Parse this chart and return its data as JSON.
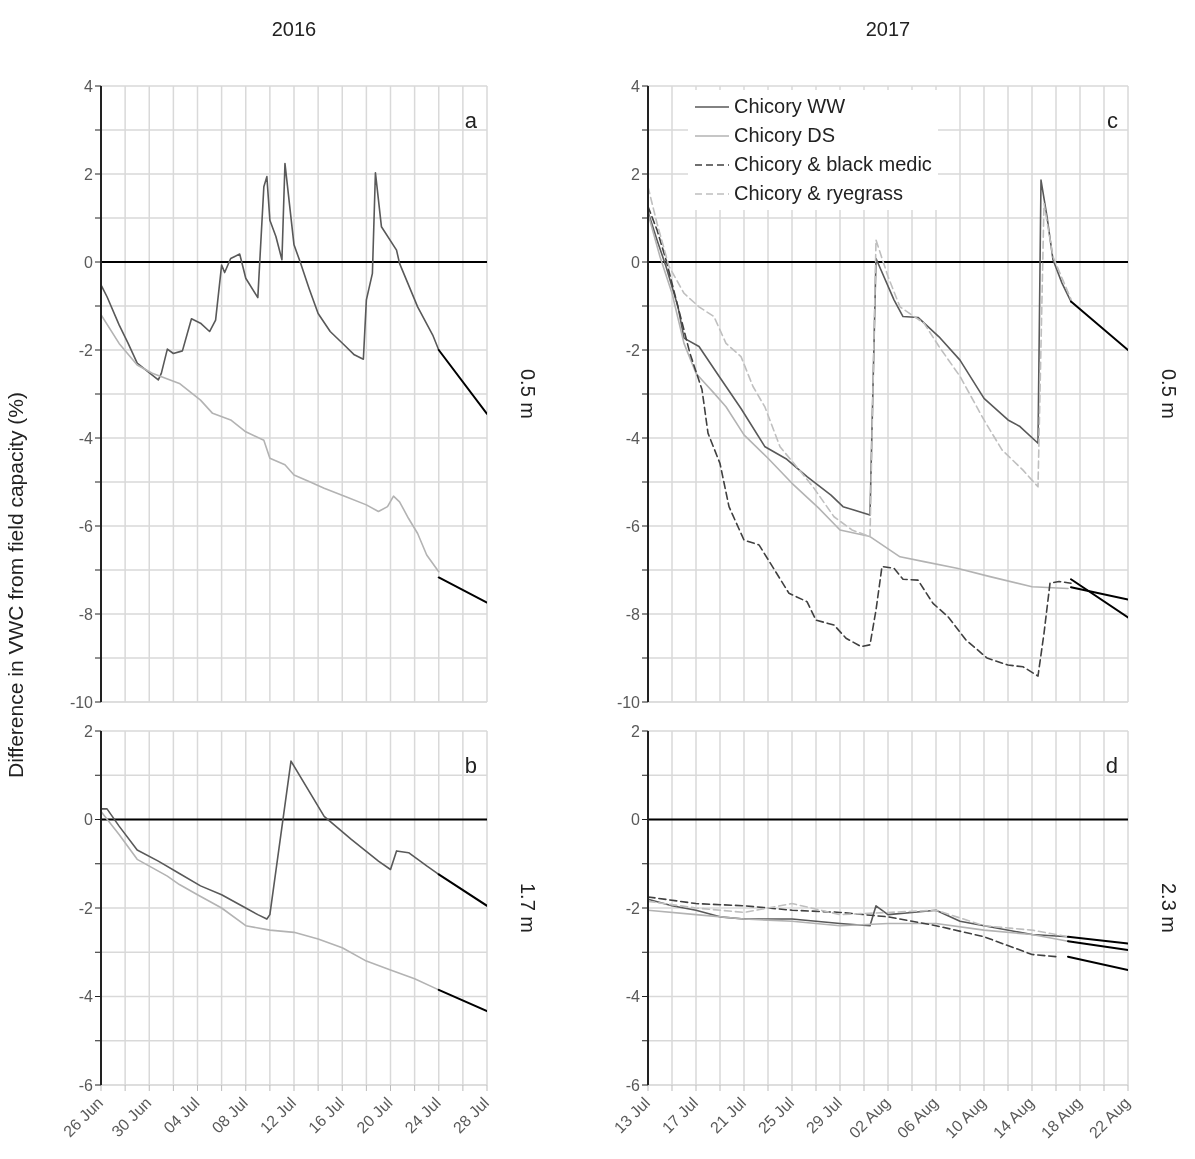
{
  "chart_data": [
    {
      "type": "line",
      "title": "2016",
      "ylabel": "Difference in VWC from field capacity (%)",
      "annotations": [
        "a",
        "0.5 m"
      ],
      "tick_labels": "y",
      "grid": true,
      "xlim": [
        "2016-06-26",
        "2016-07-28"
      ],
      "xticks": [
        {
          "value": "2016-06-26",
          "label": null
        },
        {
          "value": "2016-06-28",
          "label": null
        },
        {
          "value": "2016-06-30",
          "label": null
        },
        {
          "value": "2016-07-02",
          "label": null
        },
        {
          "value": "2016-07-04",
          "label": null
        },
        {
          "value": "2016-07-06",
          "label": null
        },
        {
          "value": "2016-07-08",
          "label": null
        },
        {
          "value": "2016-07-10",
          "label": null
        },
        {
          "value": "2016-07-12",
          "label": null
        },
        {
          "value": "2016-07-14",
          "label": null
        },
        {
          "value": "2016-07-16",
          "label": null
        },
        {
          "value": "2016-07-18",
          "label": null
        },
        {
          "value": "2016-07-20",
          "label": null
        },
        {
          "value": "2016-07-22",
          "label": null
        },
        {
          "value": "2016-07-24",
          "label": null
        },
        {
          "value": "2016-07-26",
          "label": null
        },
        {
          "value": "2016-07-28",
          "label": null
        }
      ],
      "ylim": [
        -10,
        4
      ],
      "yticks": [
        4,
        {
          "value": 3,
          "label": null
        },
        2,
        {
          "value": 1,
          "label": null
        },
        0,
        {
          "value": -1,
          "label": null
        },
        -2,
        {
          "value": -3,
          "label": null
        },
        -4,
        {
          "value": -5,
          "label": null
        },
        -6,
        {
          "value": -7,
          "label": null
        },
        -8,
        {
          "value": -9,
          "label": null
        },
        -10
      ],
      "ref_lines": [
        {
          "axis": "y",
          "value": 0,
          "color": "#000000"
        }
      ],
      "series": [
        {
          "color": "#595959",
          "line_style": "solid",
          "x": [
            "2016-06-26T00:00",
            "2016-06-26T12:00",
            "2016-06-27T12:00",
            "2016-06-28T06:00",
            "2016-06-29T00:00",
            "2016-06-30T06:00",
            "2016-06-30T18:00",
            "2016-07-01T00:00",
            "2016-07-01T12:00",
            "2016-07-02T00:00",
            "2016-07-02T18:00",
            "2016-07-03T12:00",
            "2016-07-04T06:00",
            "2016-07-05T00:00",
            "2016-07-05T12:00",
            "2016-07-06T00:00",
            "2016-07-06T06:00",
            "2016-07-06T18:00",
            "2016-07-07T12:00",
            "2016-07-08T00:00",
            "2016-07-09T00:00",
            "2016-07-09T12:00",
            "2016-07-09T18:00",
            "2016-07-10T00:00",
            "2016-07-10T12:00",
            "2016-07-11T00:00",
            "2016-07-11T06:00",
            "2016-07-12T00:00",
            "2016-07-12T12:00",
            "2016-07-13T06:00",
            "2016-07-14T00:00",
            "2016-07-15T00:00",
            "2016-07-16T06:00",
            "2016-07-17T00:00",
            "2016-07-17T18:00",
            "2016-07-18T00:00",
            "2016-07-18T12:00",
            "2016-07-18T18:00",
            "2016-07-19T06:00",
            "2016-07-20T12:00",
            "2016-07-20T18:00",
            "2016-07-22T06:00",
            "2016-07-23T12:00",
            "2016-07-24T00:00"
          ],
          "values": [
            -0.52,
            -0.79,
            -1.43,
            -1.85,
            -2.3,
            -2.57,
            -2.68,
            -2.53,
            -1.98,
            -2.08,
            -2.02,
            -1.29,
            -1.39,
            -1.58,
            -1.32,
            -0.07,
            -0.24,
            0.08,
            0.18,
            -0.37,
            -0.81,
            1.71,
            1.94,
            0.95,
            0.58,
            0.05,
            2.24,
            0.39,
            0.01,
            -0.6,
            -1.17,
            -1.58,
            -1.91,
            -2.11,
            -2.21,
            -0.86,
            -0.26,
            2.03,
            0.8,
            0.27,
            -0.03,
            -1.02,
            -1.66,
            -2.0
          ]
        },
        {
          "color": "#b3b3b3",
          "line_style": "solid",
          "x": [
            "2016-06-26T00:00",
            "2016-06-27T12:00",
            "2016-06-29T00:00",
            "2016-06-30T06:00",
            "2016-07-02T12:00",
            "2016-07-04T06:00",
            "2016-07-05T06:00",
            "2016-07-06T18:00",
            "2016-07-08T00:00",
            "2016-07-09T12:00",
            "2016-07-10T00:00",
            "2016-07-11T06:00",
            "2016-07-12T00:00",
            "2016-07-13T06:00",
            "2016-07-14T12:00",
            "2016-07-16T06:00",
            "2016-07-18T00:00",
            "2016-07-19T00:00",
            "2016-07-19T18:00",
            "2016-07-20T06:00",
            "2016-07-20T18:00",
            "2016-07-21T12:00",
            "2016-07-22T06:00",
            "2016-07-23T00:00",
            "2016-07-24T00:00"
          ],
          "values": [
            -1.2,
            -1.85,
            -2.34,
            -2.53,
            -2.76,
            -3.14,
            -3.44,
            -3.59,
            -3.86,
            -4.05,
            -4.46,
            -4.61,
            -4.84,
            -4.99,
            -5.14,
            -5.33,
            -5.52,
            -5.67,
            -5.56,
            -5.32,
            -5.45,
            -5.83,
            -6.17,
            -6.66,
            -7.04
          ]
        },
        {
          "color": "#000000",
          "line_style": "solid",
          "x": [
            "2016-07-24T00:00",
            "2016-07-28T00:00"
          ],
          "values": [
            -2.0,
            -3.45
          ]
        },
        {
          "color": "#000000",
          "line_style": "solid",
          "x": [
            "2016-07-24T00:00",
            "2016-07-28T00:00"
          ],
          "values": [
            -7.17,
            -7.74
          ]
        }
      ]
    },
    {
      "type": "line",
      "annotations": [
        "b",
        "1.7 m"
      ],
      "grid": true,
      "xlim": [
        "2016-06-26",
        "2016-07-28"
      ],
      "xticks": [
        {
          "value": "2016-06-26",
          "label": "26 Jun"
        },
        {
          "value": "2016-06-28",
          "label": null
        },
        {
          "value": "2016-06-30",
          "label": "30 Jun"
        },
        {
          "value": "2016-07-02",
          "label": null
        },
        {
          "value": "2016-07-04",
          "label": "04 Jul"
        },
        {
          "value": "2016-07-06",
          "label": null
        },
        {
          "value": "2016-07-08",
          "label": "08 Jul"
        },
        {
          "value": "2016-07-10",
          "label": null
        },
        {
          "value": "2016-07-12",
          "label": "12 Jul"
        },
        {
          "value": "2016-07-14",
          "label": null
        },
        {
          "value": "2016-07-16",
          "label": "16 Jul"
        },
        {
          "value": "2016-07-18",
          "label": null
        },
        {
          "value": "2016-07-20",
          "label": "20 Jul"
        },
        {
          "value": "2016-07-22",
          "label": null
        },
        {
          "value": "2016-07-24",
          "label": "24 Jul"
        },
        {
          "value": "2016-07-26",
          "label": null
        },
        {
          "value": "2016-07-28",
          "label": "28 Jul"
        }
      ],
      "ylim": [
        -6,
        2
      ],
      "yticks": [
        2,
        {
          "value": 1,
          "label": null
        },
        0,
        {
          "value": -1,
          "label": null
        },
        -2,
        {
          "value": -3,
          "label": null
        },
        -4,
        {
          "value": -5,
          "label": null
        },
        -6
      ],
      "ref_lines": [
        {
          "axis": "y",
          "value": 0,
          "color": "#000000"
        }
      ],
      "series": [
        {
          "color": "#595959",
          "line_style": "solid",
          "x": [
            "2016-06-26T00:00",
            "2016-06-26T12:00",
            "2016-06-27T12:00",
            "2016-06-29T00:00",
            "2016-06-30T18:00",
            "2016-07-02T12:00",
            "2016-07-04T06:00",
            "2016-07-06T00:00",
            "2016-07-08T00:00",
            "2016-07-09T00:00",
            "2016-07-09T18:00",
            "2016-07-10T00:00",
            "2016-07-11T18:00",
            "2016-07-14T12:00",
            "2016-07-16T18:00",
            "2016-07-19T00:00",
            "2016-07-20T00:00",
            "2016-07-20T12:00",
            "2016-07-21T12:00",
            "2016-07-23T00:00",
            "2016-07-24T00:00"
          ],
          "values": [
            0.24,
            0.24,
            -0.15,
            -0.69,
            -0.94,
            -1.22,
            -1.5,
            -1.7,
            -2.0,
            -2.15,
            -2.25,
            -2.15,
            1.32,
            0.07,
            -0.45,
            -0.94,
            -1.13,
            -0.71,
            -0.75,
            -1.05,
            -1.24
          ]
        },
        {
          "color": "#b3b3b3",
          "line_style": "solid",
          "x": [
            "2016-06-26T00:00",
            "2016-06-27T12:00",
            "2016-06-29T00:00",
            "2016-07-01T12:00",
            "2016-07-02T12:00",
            "2016-07-04T00:00",
            "2016-07-06T00:00",
            "2016-07-08T00:00",
            "2016-07-10T00:00",
            "2016-07-12T00:00",
            "2016-07-14T00:00",
            "2016-07-16T00:00",
            "2016-07-18T00:00",
            "2016-07-20T00:00",
            "2016-07-22T00:00",
            "2016-07-24T00:00"
          ],
          "values": [
            0.18,
            -0.34,
            -0.9,
            -1.28,
            -1.47,
            -1.7,
            -2.0,
            -2.4,
            -2.5,
            -2.55,
            -2.7,
            -2.9,
            -3.2,
            -3.4,
            -3.6,
            -3.85
          ]
        },
        {
          "color": "#000000",
          "line_style": "solid",
          "x": [
            "2016-07-24T00:00",
            "2016-07-28T00:00"
          ],
          "values": [
            -1.24,
            -1.95
          ]
        },
        {
          "color": "#000000",
          "line_style": "solid",
          "x": [
            "2016-07-24T00:00",
            "2016-07-28T00:00"
          ],
          "values": [
            -3.85,
            -4.33
          ]
        }
      ]
    },
    {
      "type": "line",
      "title": "2017",
      "annotations": [
        "c",
        "0.5 m"
      ],
      "tick_labels": "y",
      "grid": true,
      "legend": "top left",
      "xlim": [
        "2017-07-13",
        "2017-08-22"
      ],
      "xticks": [
        {
          "value": "2017-07-13",
          "label": null
        },
        {
          "value": "2017-07-15",
          "label": null
        },
        {
          "value": "2017-07-17",
          "label": null
        },
        {
          "value": "2017-07-19",
          "label": null
        },
        {
          "value": "2017-07-21",
          "label": null
        },
        {
          "value": "2017-07-23",
          "label": null
        },
        {
          "value": "2017-07-25",
          "label": null
        },
        {
          "value": "2017-07-27",
          "label": null
        },
        {
          "value": "2017-07-29",
          "label": null
        },
        {
          "value": "2017-07-31",
          "label": null
        },
        {
          "value": "2017-08-02",
          "label": null
        },
        {
          "value": "2017-08-04",
          "label": null
        },
        {
          "value": "2017-08-06",
          "label": null
        },
        {
          "value": "2017-08-08",
          "label": null
        },
        {
          "value": "2017-08-10",
          "label": null
        },
        {
          "value": "2017-08-12",
          "label": null
        },
        {
          "value": "2017-08-14",
          "label": null
        },
        {
          "value": "2017-08-16",
          "label": null
        },
        {
          "value": "2017-08-18",
          "label": null
        },
        {
          "value": "2017-08-20",
          "label": null
        },
        {
          "value": "2017-08-22",
          "label": null
        }
      ],
      "ylim": [
        -10,
        4
      ],
      "yticks": [
        4,
        {
          "value": 3,
          "label": null
        },
        2,
        {
          "value": 1,
          "label": null
        },
        0,
        {
          "value": -1,
          "label": null
        },
        -2,
        {
          "value": -3,
          "label": null
        },
        -4,
        {
          "value": -5,
          "label": null
        },
        -6,
        {
          "value": -7,
          "label": null
        },
        -8,
        {
          "value": -9,
          "label": null
        },
        -10
      ],
      "ref_lines": [
        {
          "axis": "y",
          "value": 0,
          "color": "#000000"
        }
      ],
      "series": [
        {
          "name": "Chicory WW",
          "color": "#595959",
          "line_style": "solid",
          "x": [
            "2017-07-13T00:00",
            "2017-07-13T18:00",
            "2017-07-14T12:00",
            "2017-07-15T12:00",
            "2017-07-16T00:00",
            "2017-07-17T06:00",
            "2017-07-18T18:00",
            "2017-07-20T18:00",
            "2017-07-22T18:00",
            "2017-07-24T12:00",
            "2017-07-26T06:00",
            "2017-07-28T06:00",
            "2017-07-29T06:00",
            "2017-07-31T12:00",
            "2017-08-01T00:00",
            "2017-08-02T12:00",
            "2017-08-03T06:00",
            "2017-08-04T12:00",
            "2017-08-06T06:00",
            "2017-08-08T00:00",
            "2017-08-10T00:00",
            "2017-08-12T00:00",
            "2017-08-13T00:00",
            "2017-08-14T12:00",
            "2017-08-14T18:00",
            "2017-08-15T06:00",
            "2017-08-15T18:00",
            "2017-08-16T12:00",
            "2017-08-17T06:00"
          ],
          "values": [
            1.14,
            0.5,
            -0.1,
            -1.02,
            -1.73,
            -1.92,
            -2.53,
            -3.33,
            -4.2,
            -4.47,
            -4.88,
            -5.3,
            -5.56,
            -5.75,
            0.08,
            -0.86,
            -1.24,
            -1.26,
            -1.7,
            -2.23,
            -3.1,
            -3.59,
            -3.74,
            -4.12,
            1.86,
            1.03,
            0.05,
            -0.48,
            -0.9
          ]
        },
        {
          "name": "Chicory DS",
          "color": "#b3b3b3",
          "line_style": "solid",
          "x": [
            "2017-07-13T00:00",
            "2017-07-14T00:00",
            "2017-07-15T00:00",
            "2017-07-16T00:00",
            "2017-07-17T00:00",
            "2017-07-17T12:00",
            "2017-07-18T12:00",
            "2017-07-19T12:00",
            "2017-07-21T00:00",
            "2017-07-23T00:00",
            "2017-07-25T00:00",
            "2017-07-27T06:00",
            "2017-07-29T00:00",
            "2017-07-31T12:00",
            "2017-08-03T00:00",
            "2017-08-05T00:00",
            "2017-08-07T18:00",
            "2017-08-10T12:00",
            "2017-08-14T00:00",
            "2017-08-17T00:00"
          ],
          "values": [
            1.1,
            0.12,
            -0.71,
            -1.85,
            -2.53,
            -2.68,
            -2.98,
            -3.29,
            -3.93,
            -4.46,
            -5.03,
            -5.6,
            -6.09,
            -6.24,
            -6.7,
            -6.81,
            -6.96,
            -7.15,
            -7.38,
            -7.42
          ]
        },
        {
          "name": "Chicory & black medic",
          "color": "#404040",
          "line_style": "dashed",
          "x": [
            "2017-07-13T00:00",
            "2017-07-13T18:00",
            "2017-07-14T12:00",
            "2017-07-15T12:00",
            "2017-07-16T12:00",
            "2017-07-17T12:00",
            "2017-07-18T00:00",
            "2017-07-19T00:00",
            "2017-07-19T18:00",
            "2017-07-21T00:00",
            "2017-07-22T06:00",
            "2017-07-24T18:00",
            "2017-07-26T06:00",
            "2017-07-27T00:00",
            "2017-07-28T12:00",
            "2017-07-29T12:00",
            "2017-07-30T18:00",
            "2017-07-31T12:00",
            "2017-08-01T00:00",
            "2017-08-01T12:00",
            "2017-08-02T12:00",
            "2017-08-03T06:00",
            "2017-08-04T12:00",
            "2017-08-05T18:00",
            "2017-08-07T00:00",
            "2017-08-08T12:00",
            "2017-08-10T06:00",
            "2017-08-12T00:00",
            "2017-08-13T06:00",
            "2017-08-14T12:00",
            "2017-08-15T00:00",
            "2017-08-15T12:00",
            "2017-08-16T06:00",
            "2017-08-17T06:00"
          ],
          "values": [
            1.26,
            0.73,
            0.05,
            -1.02,
            -2.08,
            -2.9,
            -3.89,
            -4.58,
            -5.56,
            -6.32,
            -6.43,
            -7.53,
            -7.72,
            -8.14,
            -8.25,
            -8.55,
            -8.74,
            -8.7,
            -7.91,
            -6.92,
            -6.96,
            -7.21,
            -7.23,
            -7.76,
            -8.06,
            -8.59,
            -9.0,
            -9.16,
            -9.2,
            -9.41,
            -8.44,
            -7.3,
            -7.26,
            -7.3
          ]
        },
        {
          "name": "Chicory & ryegrass",
          "color": "#bfbfbf",
          "line_style": "dashed",
          "x": [
            "2017-07-13T00:00",
            "2017-07-13T18:00",
            "2017-07-14T18:00",
            "2017-07-16T00:00",
            "2017-07-17T06:00",
            "2017-07-18T12:00",
            "2017-07-19T12:00",
            "2017-07-20T18:00",
            "2017-07-21T18:00",
            "2017-07-22T18:00",
            "2017-07-24T00:00",
            "2017-07-25T12:00",
            "2017-07-26T18:00",
            "2017-07-28T12:00",
            "2017-07-30T00:00",
            "2017-07-31T12:00",
            "2017-08-01T00:00",
            "2017-08-02T00:00",
            "2017-08-03T00:00",
            "2017-08-05T00:00",
            "2017-08-06T06:00",
            "2017-08-08T00:00",
            "2017-08-10T00:00",
            "2017-08-11T12:00",
            "2017-08-13T06:00",
            "2017-08-14T12:00",
            "2017-08-15T00:00",
            "2017-08-15T18:00",
            "2017-08-17T06:00"
          ],
          "values": [
            1.71,
            0.88,
            -0.1,
            -0.71,
            -1.02,
            -1.24,
            -1.85,
            -2.15,
            -2.83,
            -3.3,
            -4.2,
            -4.69,
            -5.11,
            -5.79,
            -6.09,
            -6.24,
            0.5,
            -0.33,
            -1.02,
            -1.39,
            -1.92,
            -2.6,
            -3.59,
            -4.27,
            -4.73,
            -5.11,
            1.33,
            0.12,
            -0.85
          ]
        },
        {
          "color": "#000000",
          "line_style": "solid",
          "x": [
            "2017-08-17T06:00",
            "2017-08-22T00:00"
          ],
          "values": [
            -0.9,
            -2.0
          ]
        },
        {
          "color": "#000000",
          "line_style": "solid",
          "x": [
            "2017-08-17T06:00",
            "2017-08-22T00:00"
          ],
          "values": [
            -7.21,
            -8.08
          ]
        },
        {
          "color": "#000000",
          "line_style": "solid",
          "x": [
            "2017-08-17T06:00",
            "2017-08-22T00:00"
          ],
          "values": [
            -7.39,
            -7.67
          ]
        }
      ]
    },
    {
      "type": "line",
      "annotations": [
        "d",
        "2.3 m"
      ],
      "grid": true,
      "xlim": [
        "2017-07-13",
        "2017-08-22"
      ],
      "xticks": [
        {
          "value": "2017-07-13",
          "label": "13 Jul"
        },
        {
          "value": "2017-07-15",
          "label": null
        },
        {
          "value": "2017-07-17",
          "label": "17 Jul"
        },
        {
          "value": "2017-07-19",
          "label": null
        },
        {
          "value": "2017-07-21",
          "label": "21 Jul"
        },
        {
          "value": "2017-07-23",
          "label": null
        },
        {
          "value": "2017-07-25",
          "label": "25 Jul"
        },
        {
          "value": "2017-07-27",
          "label": null
        },
        {
          "value": "2017-07-29",
          "label": "29 Jul"
        },
        {
          "value": "2017-07-31",
          "label": null
        },
        {
          "value": "2017-08-02",
          "label": "02 Aug"
        },
        {
          "value": "2017-08-04",
          "label": null
        },
        {
          "value": "2017-08-06",
          "label": "06 Aug"
        },
        {
          "value": "2017-08-08",
          "label": null
        },
        {
          "value": "2017-08-10",
          "label": "10 Aug"
        },
        {
          "value": "2017-08-12",
          "label": null
        },
        {
          "value": "2017-08-14",
          "label": "14 Aug"
        },
        {
          "value": "2017-08-16",
          "label": null
        },
        {
          "value": "2017-08-18",
          "label": "18 Aug"
        },
        {
          "value": "2017-08-20",
          "label": null
        },
        {
          "value": "2017-08-22",
          "label": "22 Aug"
        }
      ],
      "ylim": [
        -6,
        2
      ],
      "yticks": [
        2,
        {
          "value": 1,
          "label": null
        },
        0,
        {
          "value": -1,
          "label": null
        },
        -2,
        {
          "value": -3,
          "label": null
        },
        -4,
        {
          "value": -5,
          "label": null
        },
        -6
      ],
      "ref_lines": [
        {
          "axis": "y",
          "value": 0,
          "color": "#000000"
        }
      ],
      "series": [
        {
          "color": "#595959",
          "line_style": "solid",
          "x": [
            "2017-07-13T00:00",
            "2017-07-15T00:00",
            "2017-07-17T00:00",
            "2017-07-19T00:00",
            "2017-07-21T00:00",
            "2017-07-25T00:00",
            "2017-07-29T00:00",
            "2017-07-31T12:00",
            "2017-08-01T00:00",
            "2017-08-02T00:00",
            "2017-08-04T00:00",
            "2017-08-06T00:00",
            "2017-08-08T00:00",
            "2017-08-10T00:00",
            "2017-08-14T00:00",
            "2017-08-17T00:00"
          ],
          "values": [
            -1.8,
            -1.95,
            -2.05,
            -2.2,
            -2.25,
            -2.25,
            -2.35,
            -2.4,
            -1.95,
            -2.15,
            -2.1,
            -2.05,
            -2.3,
            -2.4,
            -2.6,
            -2.65
          ]
        },
        {
          "color": "#b3b3b3",
          "line_style": "solid",
          "x": [
            "2017-07-13T00:00",
            "2017-07-17T00:00",
            "2017-07-21T00:00",
            "2017-07-25T00:00",
            "2017-07-29T00:00",
            "2017-08-02T00:00",
            "2017-08-06T00:00",
            "2017-08-10T00:00",
            "2017-08-14T00:00",
            "2017-08-17T00:00"
          ],
          "values": [
            -2.05,
            -2.15,
            -2.25,
            -2.3,
            -2.4,
            -2.35,
            -2.35,
            -2.5,
            -2.6,
            -2.75
          ]
        },
        {
          "color": "#404040",
          "line_style": "dashed",
          "x": [
            "2017-07-13T00:00",
            "2017-07-17T00:00",
            "2017-07-21T00:00",
            "2017-07-25T00:00",
            "2017-07-29T00:00",
            "2017-08-02T00:00",
            "2017-08-06T00:00",
            "2017-08-10T00:00",
            "2017-08-14T00:00",
            "2017-08-16T00:00"
          ],
          "values": [
            -1.75,
            -1.9,
            -1.95,
            -2.05,
            -2.1,
            -2.2,
            -2.4,
            -2.65,
            -3.05,
            -3.1
          ]
        },
        {
          "color": "#bfbfbf",
          "line_style": "dashed",
          "x": [
            "2017-07-13T00:00",
            "2017-07-17T00:00",
            "2017-07-21T00:00",
            "2017-07-25T00:00",
            "2017-07-29T00:00",
            "2017-08-02T00:00",
            "2017-08-06T00:00",
            "2017-08-10T00:00",
            "2017-08-14T00:00",
            "2017-08-17T00:00"
          ],
          "values": [
            -1.85,
            -2.0,
            -2.1,
            -1.9,
            -2.15,
            -2.1,
            -2.05,
            -2.4,
            -2.5,
            -2.65
          ]
        },
        {
          "color": "#000000",
          "line_style": "solid",
          "x": [
            "2017-08-17T00:00",
            "2017-08-22T00:00"
          ],
          "values": [
            -2.65,
            -2.8
          ]
        },
        {
          "color": "#000000",
          "line_style": "solid",
          "x": [
            "2017-08-17T00:00",
            "2017-08-22T00:00"
          ],
          "values": [
            -2.75,
            -2.95
          ]
        },
        {
          "color": "#000000",
          "line_style": "solid",
          "x": [
            "2017-08-17T00:00",
            "2017-08-22T00:00"
          ],
          "values": [
            -3.1,
            -3.4
          ]
        }
      ]
    }
  ]
}
